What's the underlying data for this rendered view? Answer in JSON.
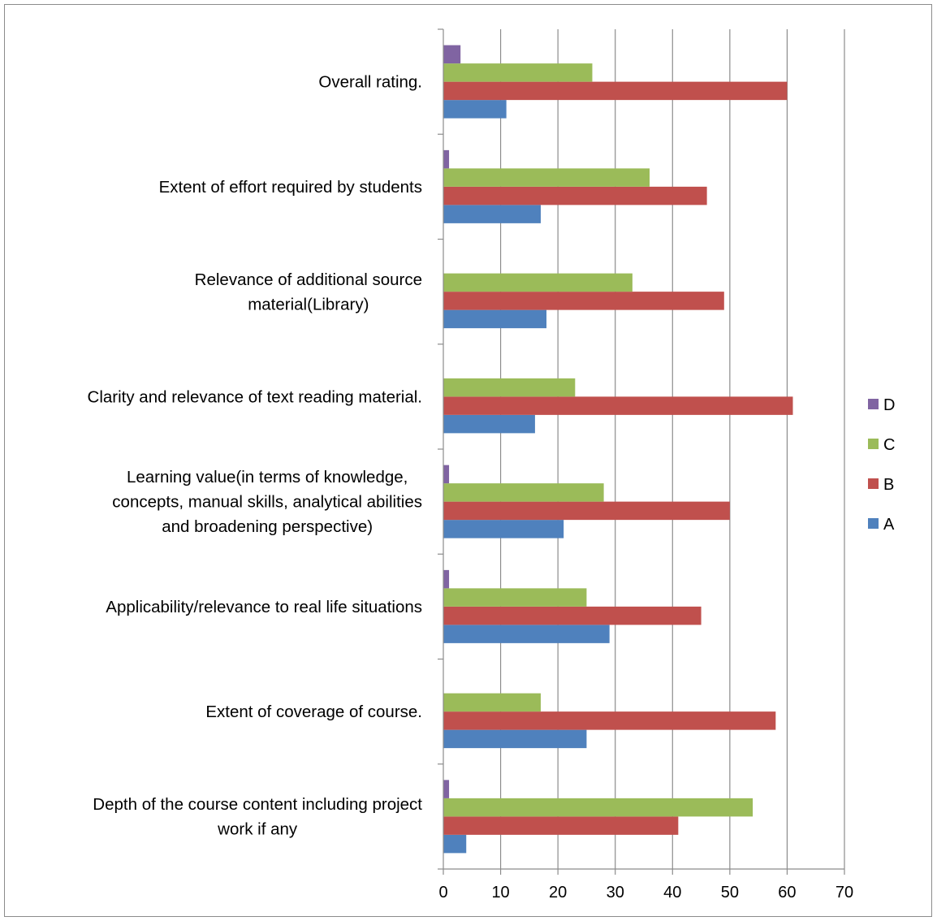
{
  "chart_data": {
    "type": "bar",
    "orientation": "horizontal",
    "title": "",
    "xlabel": "",
    "ylabel": "",
    "xlim": [
      0,
      70
    ],
    "x_ticks": [
      0,
      10,
      20,
      30,
      40,
      50,
      60,
      70
    ],
    "grid": "vertical",
    "legend_position": "right",
    "categories": [
      "Depth of the course content including project work if any",
      "Extent of coverage of course.",
      "Applicability/relevance to real life situations",
      "Learning value(in terms of knowledge, concepts, manual skills, analytical abilities and broadening perspective)",
      "Clarity and relevance of text reading material.",
      "Relevance of additional source material(Library)",
      "Extent of effort required by students",
      "Overall rating."
    ],
    "category_label_lines": [
      [
        "Depth of the course content including project",
        "work if any"
      ],
      [
        "Extent of coverage of course."
      ],
      [
        "Applicability/relevance to real life situations"
      ],
      [
        "Learning value(in terms of knowledge,",
        "concepts, manual skills, analytical abilities",
        "and broadening perspective)"
      ],
      [
        "Clarity and relevance of text reading material."
      ],
      [
        "Relevance of additional source",
        "material(Library)"
      ],
      [
        "Extent of effort required by students"
      ],
      [
        "Overall rating."
      ]
    ],
    "series": [
      {
        "name": "A",
        "color": "#4F81BD",
        "values": [
          4,
          25,
          29,
          21,
          16,
          18,
          17,
          11
        ]
      },
      {
        "name": "B",
        "color": "#C0504D",
        "values": [
          41,
          58,
          45,
          50,
          61,
          49,
          46,
          60
        ]
      },
      {
        "name": "C",
        "color": "#9BBB59",
        "values": [
          54,
          17,
          25,
          28,
          23,
          33,
          36,
          26
        ]
      },
      {
        "name": "D",
        "color": "#8064A2",
        "values": [
          1,
          0,
          1,
          1,
          0,
          0,
          1,
          3
        ]
      }
    ],
    "legend_order": [
      "D",
      "C",
      "B",
      "A"
    ]
  }
}
